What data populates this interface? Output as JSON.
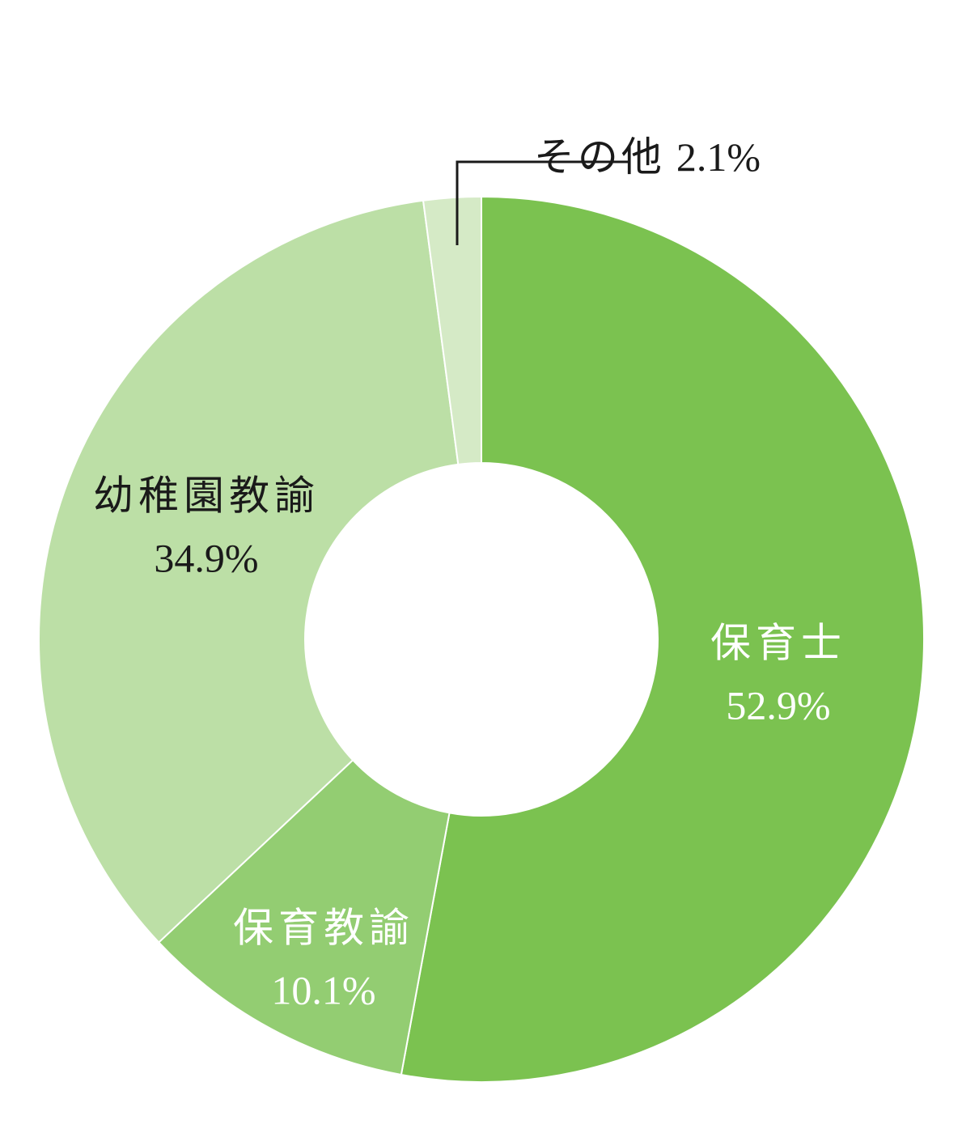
{
  "chart_data": {
    "type": "donut",
    "categories": [
      "保育士",
      "保育教諭",
      "幼稚園教諭",
      "その他"
    ],
    "values": [
      52.9,
      10.1,
      34.9,
      2.1
    ],
    "value_labels": [
      "52.9%",
      "10.1%",
      "34.9%",
      "2.1%"
    ],
    "colors": [
      "#7bc250",
      "#93cd72",
      "#bcdfa6",
      "#d5eac6"
    ]
  }
}
